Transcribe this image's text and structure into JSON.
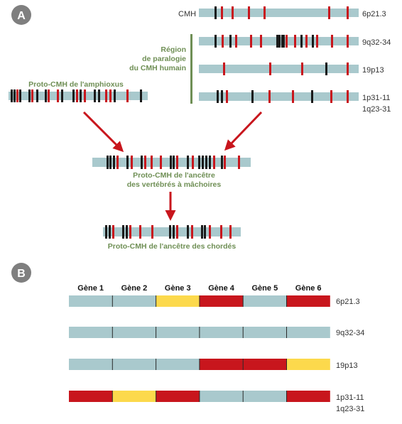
{
  "colors": {
    "bar": "#a9c9cd",
    "red": "#c8161d",
    "black": "#1a1a1a",
    "yellow": "#fcd94c",
    "green_text": "#6f8f55",
    "arrow": "#c8161d",
    "badge": "#7f7f7f"
  },
  "panel_a": {
    "badge": "A",
    "chromosomes": [
      {
        "id": "cmh",
        "prefix": "CMH",
        "label": "6p21.3"
      },
      {
        "id": "c9",
        "prefix": "",
        "label": "9q32-34"
      },
      {
        "id": "c19",
        "prefix": "",
        "label": "19p13"
      },
      {
        "id": "c1",
        "prefix": "",
        "label": "1p31-11",
        "label2": "1q23-31"
      }
    ],
    "paralogy_label": [
      "Région",
      "de paralogie",
      "du CMH humain"
    ],
    "amphioxus_label": "Proto-CMH de l'amphioxus",
    "ancestor_vertebrates_label": [
      "Proto-CMH de l'ancêtre",
      "des vertébrés à mâchoires"
    ],
    "ancestor_chordates_label": "Proto-CMH de l'ancêtre des chordés"
  },
  "panel_b": {
    "badge": "B",
    "genes": [
      "Gène 1",
      "Gène 2",
      "Gène 3",
      "Gène 4",
      "Gène 5",
      "Gène 6"
    ],
    "rows": [
      {
        "label": "6p21.3",
        "colors": [
          "bar",
          "bar",
          "yellow",
          "red",
          "bar",
          "red"
        ]
      },
      {
        "label": "9q32-34",
        "colors": [
          "bar",
          "bar",
          "bar",
          "bar",
          "bar",
          "bar"
        ]
      },
      {
        "label": "19p13",
        "colors": [
          "bar",
          "bar",
          "bar",
          "red",
          "red",
          "yellow"
        ]
      },
      {
        "label": "1p31-11",
        "label2": "1q23-31",
        "colors": [
          "red",
          "yellow",
          "red",
          "bar",
          "bar",
          "red"
        ]
      }
    ]
  }
}
